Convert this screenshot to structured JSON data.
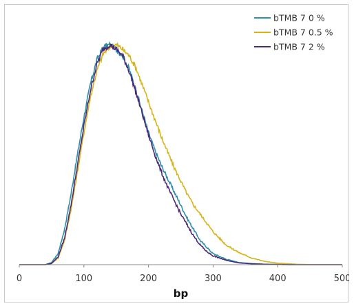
{
  "chart_data": {
    "type": "line",
    "title": "",
    "xlabel": "bp",
    "ylabel": "",
    "xlim": [
      0,
      500
    ],
    "ylim": [
      0,
      1.0
    ],
    "x_ticks": [
      "0",
      "100",
      "200",
      "300",
      "400",
      "500"
    ],
    "grid": false,
    "legend_position": "top-right",
    "series": [
      {
        "name": "bTMB 7 0 %",
        "color": "#2e8fa8",
        "x": [
          0,
          40,
          50,
          60,
          70,
          80,
          90,
          100,
          110,
          120,
          130,
          140,
          150,
          160,
          170,
          180,
          190,
          200,
          210,
          220,
          230,
          240,
          250,
          260,
          270,
          280,
          290,
          300,
          320,
          340,
          360,
          380,
          400,
          430,
          460,
          500
        ],
        "y": [
          0,
          0,
          0.01,
          0.05,
          0.16,
          0.32,
          0.5,
          0.67,
          0.82,
          0.93,
          0.99,
          1.0,
          0.98,
          0.95,
          0.89,
          0.8,
          0.7,
          0.6,
          0.52,
          0.45,
          0.39,
          0.33,
          0.27,
          0.21,
          0.16,
          0.11,
          0.08,
          0.05,
          0.025,
          0.01,
          0.005,
          0.002,
          0.001,
          0,
          0,
          0
        ]
      },
      {
        "name": "bTMB 7 0.5 %",
        "color": "#d7b31a",
        "x": [
          0,
          40,
          50,
          60,
          70,
          80,
          90,
          100,
          110,
          120,
          130,
          140,
          150,
          160,
          170,
          180,
          190,
          200,
          210,
          220,
          230,
          240,
          250,
          260,
          270,
          280,
          290,
          300,
          320,
          340,
          360,
          380,
          400,
          430,
          460,
          500
        ],
        "y": [
          0,
          0,
          0.005,
          0.03,
          0.11,
          0.25,
          0.42,
          0.6,
          0.76,
          0.88,
          0.96,
          0.99,
          1.0,
          0.98,
          0.95,
          0.9,
          0.82,
          0.74,
          0.66,
          0.58,
          0.51,
          0.44,
          0.38,
          0.32,
          0.27,
          0.23,
          0.19,
          0.15,
          0.09,
          0.055,
          0.03,
          0.015,
          0.007,
          0.002,
          0,
          0
        ]
      },
      {
        "name": "bTMB 7 2 %",
        "color": "#4b2a7a",
        "x": [
          0,
          40,
          50,
          60,
          70,
          80,
          90,
          100,
          110,
          120,
          130,
          140,
          150,
          160,
          170,
          180,
          190,
          200,
          210,
          220,
          230,
          240,
          250,
          260,
          270,
          280,
          290,
          300,
          320,
          340,
          360,
          380,
          400,
          430,
          460,
          500
        ],
        "y": [
          0,
          0,
          0.006,
          0.035,
          0.12,
          0.27,
          0.45,
          0.63,
          0.79,
          0.91,
          0.98,
          1.0,
          0.98,
          0.95,
          0.88,
          0.79,
          0.69,
          0.59,
          0.5,
          0.42,
          0.35,
          0.29,
          0.23,
          0.18,
          0.13,
          0.09,
          0.06,
          0.04,
          0.02,
          0.008,
          0.004,
          0.002,
          0.001,
          0,
          0,
          0
        ]
      }
    ]
  }
}
